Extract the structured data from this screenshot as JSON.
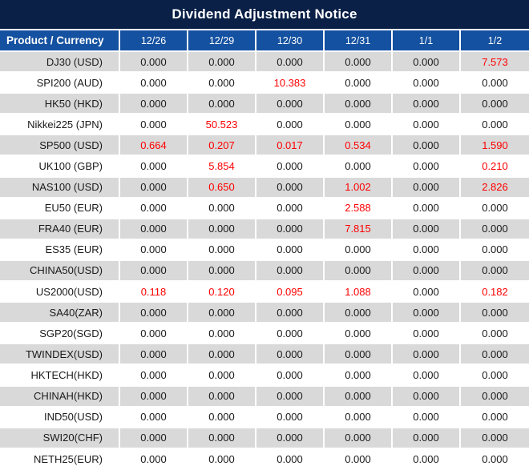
{
  "chart_data": {
    "type": "table",
    "title": "Dividend Adjustment Notice",
    "columns": [
      "Product / Currency",
      "12/26",
      "12/29",
      "12/30",
      "12/31",
      "1/1",
      "1/2"
    ],
    "rows": [
      {
        "label": "DJ30 (USD)",
        "values": [
          "0.000",
          "0.000",
          "0.000",
          "0.000",
          "0.000",
          "7.573"
        ],
        "red": [
          false,
          false,
          false,
          false,
          false,
          true
        ]
      },
      {
        "label": "SPI200 (AUD)",
        "values": [
          "0.000",
          "0.000",
          "10.383",
          "0.000",
          "0.000",
          "0.000"
        ],
        "red": [
          false,
          false,
          true,
          false,
          false,
          false
        ]
      },
      {
        "label": "HK50 (HKD)",
        "values": [
          "0.000",
          "0.000",
          "0.000",
          "0.000",
          "0.000",
          "0.000"
        ],
        "red": [
          false,
          false,
          false,
          false,
          false,
          false
        ]
      },
      {
        "label": "Nikkei225 (JPN)",
        "values": [
          "0.000",
          "50.523",
          "0.000",
          "0.000",
          "0.000",
          "0.000"
        ],
        "red": [
          false,
          true,
          false,
          false,
          false,
          false
        ]
      },
      {
        "label": "SP500 (USD)",
        "values": [
          "0.664",
          "0.207",
          "0.017",
          "0.534",
          "0.000",
          "1.590"
        ],
        "red": [
          true,
          true,
          true,
          true,
          false,
          true
        ]
      },
      {
        "label": "UK100 (GBP)",
        "values": [
          "0.000",
          "5.854",
          "0.000",
          "0.000",
          "0.000",
          "0.210"
        ],
        "red": [
          false,
          true,
          false,
          false,
          false,
          true
        ]
      },
      {
        "label": "NAS100 (USD)",
        "values": [
          "0.000",
          "0.650",
          "0.000",
          "1.002",
          "0.000",
          "2.826"
        ],
        "red": [
          false,
          true,
          false,
          true,
          false,
          true
        ]
      },
      {
        "label": "EU50 (EUR)",
        "values": [
          "0.000",
          "0.000",
          "0.000",
          "2.588",
          "0.000",
          "0.000"
        ],
        "red": [
          false,
          false,
          false,
          true,
          false,
          false
        ]
      },
      {
        "label": "FRA40 (EUR)",
        "values": [
          "0.000",
          "0.000",
          "0.000",
          "7.815",
          "0.000",
          "0.000"
        ],
        "red": [
          false,
          false,
          false,
          true,
          false,
          false
        ]
      },
      {
        "label": "ES35 (EUR)",
        "values": [
          "0.000",
          "0.000",
          "0.000",
          "0.000",
          "0.000",
          "0.000"
        ],
        "red": [
          false,
          false,
          false,
          false,
          false,
          false
        ]
      },
      {
        "label": "CHINA50(USD)",
        "values": [
          "0.000",
          "0.000",
          "0.000",
          "0.000",
          "0.000",
          "0.000"
        ],
        "red": [
          false,
          false,
          false,
          false,
          false,
          false
        ]
      },
      {
        "label": "US2000(USD)",
        "values": [
          "0.118",
          "0.120",
          "0.095",
          "1.088",
          "0.000",
          "0.182"
        ],
        "red": [
          true,
          true,
          true,
          true,
          false,
          true
        ]
      },
      {
        "label": "SA40(ZAR)",
        "values": [
          "0.000",
          "0.000",
          "0.000",
          "0.000",
          "0.000",
          "0.000"
        ],
        "red": [
          false,
          false,
          false,
          false,
          false,
          false
        ]
      },
      {
        "label": "SGP20(SGD)",
        "values": [
          "0.000",
          "0.000",
          "0.000",
          "0.000",
          "0.000",
          "0.000"
        ],
        "red": [
          false,
          false,
          false,
          false,
          false,
          false
        ]
      },
      {
        "label": "TWINDEX(USD)",
        "values": [
          "0.000",
          "0.000",
          "0.000",
          "0.000",
          "0.000",
          "0.000"
        ],
        "red": [
          false,
          false,
          false,
          false,
          false,
          false
        ]
      },
      {
        "label": "HKTECH(HKD)",
        "values": [
          "0.000",
          "0.000",
          "0.000",
          "0.000",
          "0.000",
          "0.000"
        ],
        "red": [
          false,
          false,
          false,
          false,
          false,
          false
        ]
      },
      {
        "label": "CHINAH(HKD)",
        "values": [
          "0.000",
          "0.000",
          "0.000",
          "0.000",
          "0.000",
          "0.000"
        ],
        "red": [
          false,
          false,
          false,
          false,
          false,
          false
        ]
      },
      {
        "label": "IND50(USD)",
        "values": [
          "0.000",
          "0.000",
          "0.000",
          "0.000",
          "0.000",
          "0.000"
        ],
        "red": [
          false,
          false,
          false,
          false,
          false,
          false
        ]
      },
      {
        "label": "SWI20(CHF)",
        "values": [
          "0.000",
          "0.000",
          "0.000",
          "0.000",
          "0.000",
          "0.000"
        ],
        "red": [
          false,
          false,
          false,
          false,
          false,
          false
        ]
      },
      {
        "label": "NETH25(EUR)",
        "values": [
          "0.000",
          "0.000",
          "0.000",
          "0.000",
          "0.000",
          "0.000"
        ],
        "red": [
          false,
          false,
          false,
          false,
          false,
          false
        ]
      }
    ],
    "colors": {
      "title_bg": "#0a2047",
      "header_bg": "#1451a0",
      "row_bg": "#ffffff",
      "row_alt_bg": "#d9d9d9",
      "red_text": "#fe0000",
      "text": "#1a1a1a",
      "header_text": "#ffffff"
    },
    "layout": {
      "legend": "none",
      "grid": "white 2px separators",
      "alt_shading": "odd rows gray"
    }
  }
}
